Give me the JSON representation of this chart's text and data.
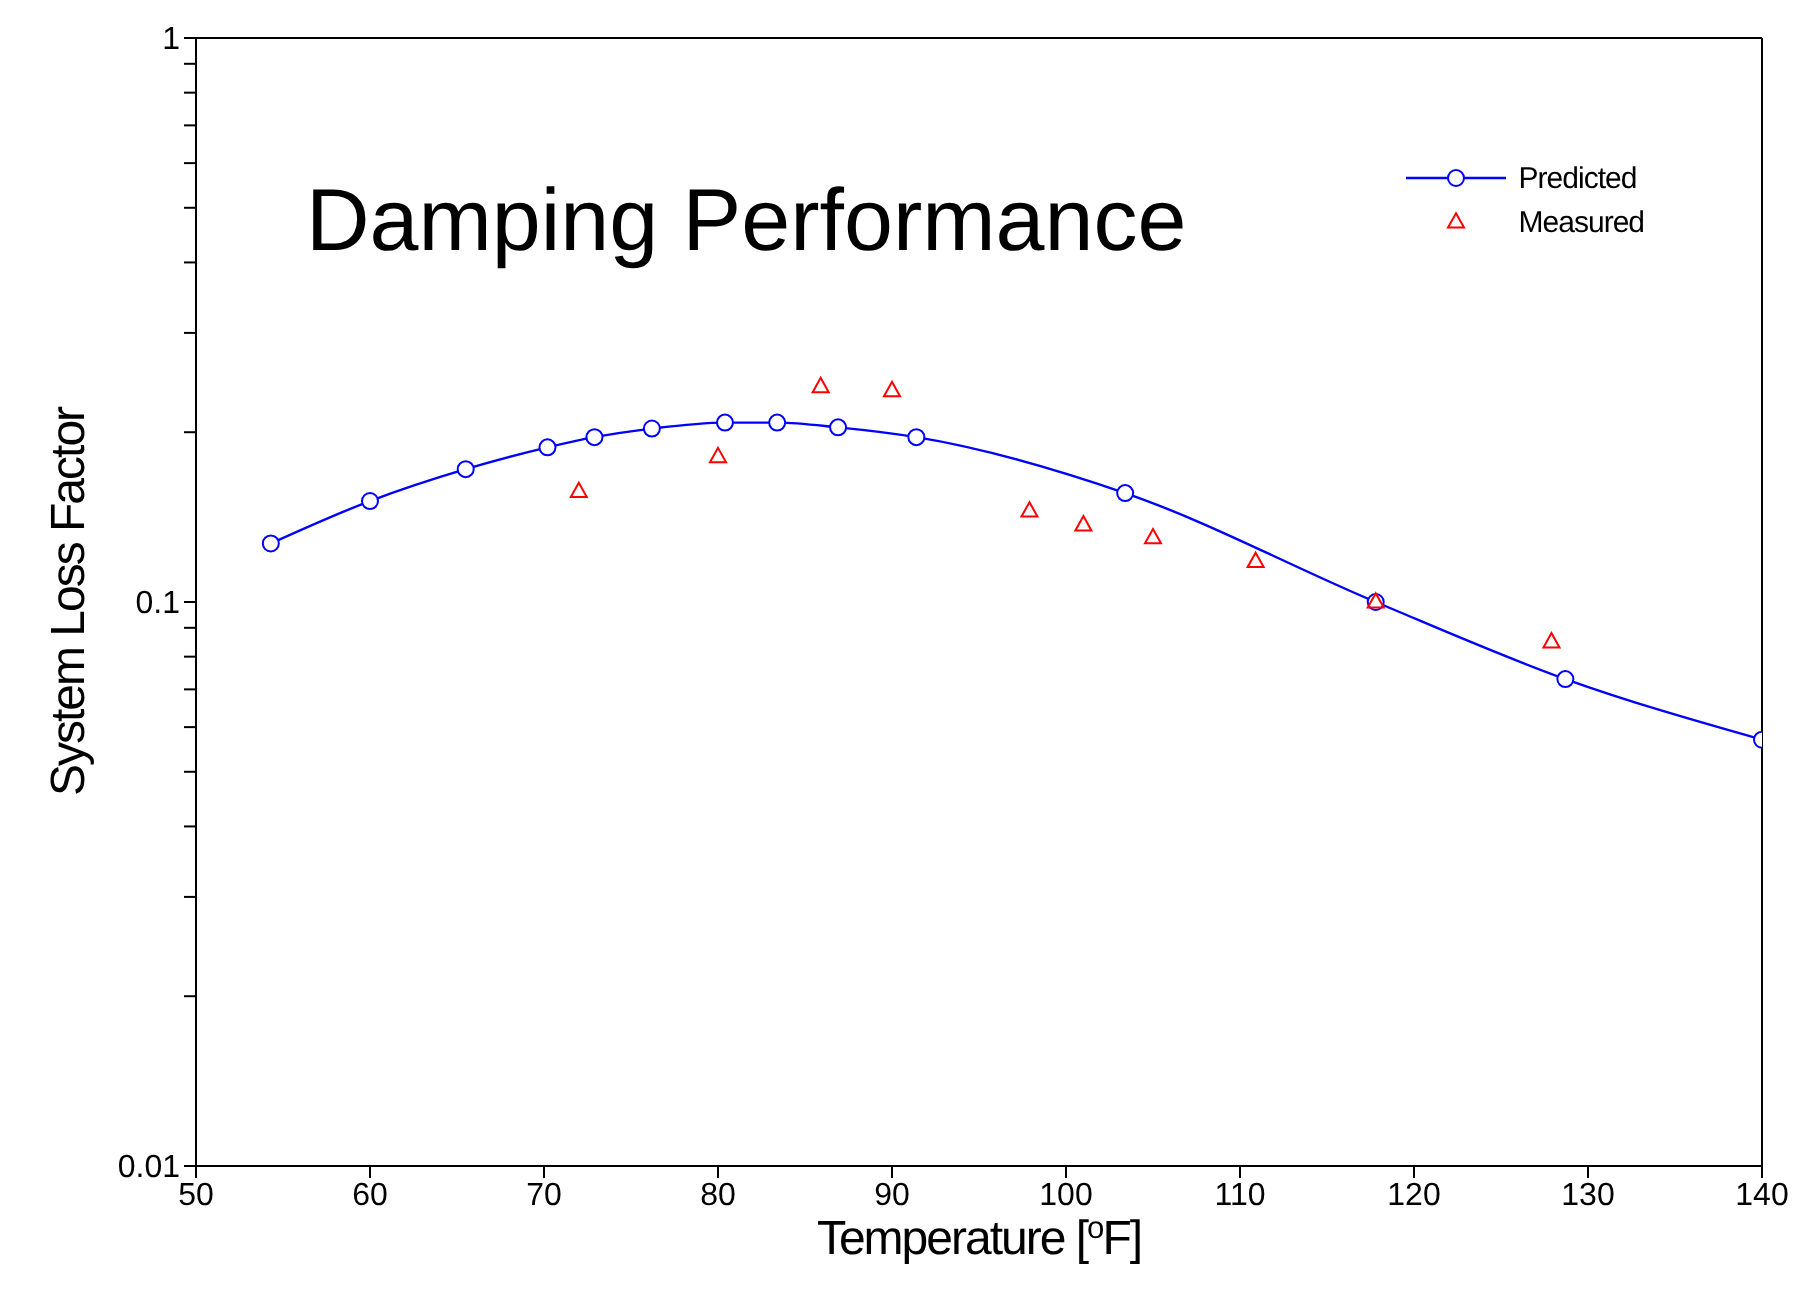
{
  "chart_data": {
    "type": "line",
    "title": "Damping Performance",
    "xlabel": "Temperature [$^{o}$F]",
    "ylabel": "System Loss Factor",
    "log": "y",
    "legend": "top right",
    "xlim": [
      50,
      140
    ],
    "xticks": [
      50,
      60,
      70,
      80,
      90,
      100,
      110,
      120,
      130,
      140
    ],
    "ylim": [
      0.01,
      1
    ],
    "yticks": [
      0.01,
      {
        "value": 0.02,
        "label": null
      },
      {
        "value": 0.03,
        "label": null
      },
      {
        "value": 0.04,
        "label": null
      },
      {
        "value": 0.05,
        "label": null
      },
      {
        "value": 0.06,
        "label": null
      },
      {
        "value": 0.07,
        "label": null
      },
      {
        "value": 0.08,
        "label": null
      },
      {
        "value": 0.09,
        "label": null
      },
      0.1,
      {
        "value": 0.2,
        "label": null
      },
      {
        "value": 0.3,
        "label": null
      },
      {
        "value": 0.4,
        "label": null
      },
      {
        "value": 0.5,
        "label": null
      },
      {
        "value": 0.6,
        "label": null
      },
      {
        "value": 0.7,
        "label": null
      },
      {
        "value": 0.8,
        "label": null
      },
      {
        "value": 0.9,
        "label": null
      },
      1
    ],
    "series": [
      {
        "name": "Predicted",
        "color": "#0000ff",
        "marker": "circle",
        "line_style": "solid",
        "x": [
          54.3,
          60,
          65.5,
          70.2,
          72.9,
          76.2,
          80.4,
          83.4,
          86.9,
          91.4,
          103.4,
          117.8,
          128.7,
          140
        ],
        "values": [
          0.127,
          0.151,
          0.172,
          0.188,
          0.196,
          0.203,
          0.208,
          0.208,
          0.204,
          0.196,
          0.156,
          0.1,
          0.073,
          0.057
        ]
      },
      {
        "name": "Measured",
        "type": "scatter",
        "color": "#ff0000",
        "marker": "triangle",
        "x": [
          72,
          80,
          85.9,
          90,
          97.9,
          101,
          105,
          110.9,
          117.8,
          127.9
        ],
        "values": [
          0.157,
          0.181,
          0.241,
          0.237,
          0.145,
          0.137,
          0.13,
          0.118,
          0.1,
          0.085
        ]
      }
    ]
  }
}
